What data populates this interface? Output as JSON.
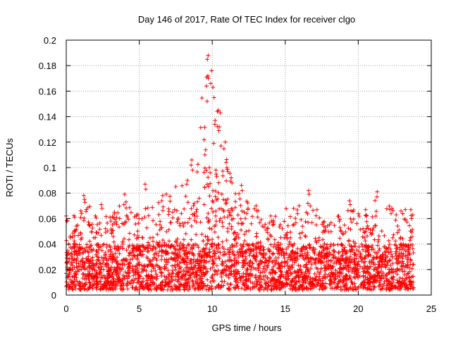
{
  "chart_data": {
    "type": "scatter",
    "title": "Day 146 of 2017, Rate Of TEC Index for receiver clgo",
    "xlabel": "GPS time / hours",
    "ylabel": "ROTI / TECUs",
    "xlim": [
      0,
      25
    ],
    "ylim": [
      0,
      0.2
    ],
    "x_ticks": [
      0,
      5,
      10,
      15,
      20,
      25
    ],
    "x_tick_labels": [
      "0",
      "5",
      "10",
      "15",
      "20",
      "25"
    ],
    "y_ticks": [
      0,
      0.02,
      0.04,
      0.06,
      0.08,
      0.1,
      0.12,
      0.14,
      0.16,
      0.18,
      0.2
    ],
    "y_tick_labels": [
      "0",
      "0.02",
      "0.04",
      "0.06",
      "0.08",
      "0.1",
      "0.12",
      "0.14",
      "0.16",
      "0.18",
      "0.2"
    ],
    "grid": true,
    "marker": "+",
    "colors": {
      "series": "#ff0000",
      "grid": "#a0a0a0",
      "axis": "#000000"
    },
    "series": [
      {
        "name": "ROTI",
        "x_range": [
          0,
          23.8
        ],
        "typical_range": [
          0.004,
          0.04
        ],
        "envelope": [
          {
            "x": 0.0,
            "y": 0.062
          },
          {
            "x": 1.0,
            "y": 0.066
          },
          {
            "x": 1.2,
            "y": 0.078
          },
          {
            "x": 2.0,
            "y": 0.062
          },
          {
            "x": 2.4,
            "y": 0.071
          },
          {
            "x": 3.0,
            "y": 0.061
          },
          {
            "x": 4.0,
            "y": 0.079
          },
          {
            "x": 5.4,
            "y": 0.087
          },
          {
            "x": 6.6,
            "y": 0.078
          },
          {
            "x": 8.3,
            "y": 0.09
          },
          {
            "x": 8.6,
            "y": 0.106
          },
          {
            "x": 9.7,
            "y": 0.188
          },
          {
            "x": 9.95,
            "y": 0.176
          },
          {
            "x": 10.4,
            "y": 0.145
          },
          {
            "x": 10.9,
            "y": 0.12
          },
          {
            "x": 11.3,
            "y": 0.092
          },
          {
            "x": 12.0,
            "y": 0.086
          },
          {
            "x": 13.0,
            "y": 0.07
          },
          {
            "x": 14.0,
            "y": 0.062
          },
          {
            "x": 16.6,
            "y": 0.082
          },
          {
            "x": 17.6,
            "y": 0.057
          },
          {
            "x": 19.4,
            "y": 0.074
          },
          {
            "x": 20.5,
            "y": 0.067
          },
          {
            "x": 21.3,
            "y": 0.081
          },
          {
            "x": 22.3,
            "y": 0.068
          },
          {
            "x": 23.6,
            "y": 0.067
          }
        ],
        "points": [
          [
            9.72,
            0.188
          ],
          [
            9.66,
            0.185
          ],
          [
            9.7,
            0.172
          ],
          [
            9.62,
            0.171
          ],
          [
            9.74,
            0.17
          ],
          [
            9.95,
            0.176
          ],
          [
            9.9,
            0.166
          ],
          [
            10.05,
            0.163
          ],
          [
            9.6,
            0.164
          ],
          [
            9.65,
            0.152
          ],
          [
            10.12,
            0.155
          ],
          [
            10.42,
            0.145
          ],
          [
            10.35,
            0.144
          ],
          [
            10.55,
            0.143
          ],
          [
            10.2,
            0.137
          ],
          [
            10.18,
            0.134
          ],
          [
            10.48,
            0.132
          ],
          [
            10.45,
            0.129
          ],
          [
            10.1,
            0.119
          ],
          [
            10.6,
            0.117
          ],
          [
            8.6,
            0.106
          ],
          [
            8.55,
            0.102
          ],
          [
            8.65,
            0.098
          ],
          [
            9.5,
            0.11
          ],
          [
            9.55,
            0.114
          ],
          [
            8.3,
            0.09
          ],
          [
            8.25,
            0.087
          ],
          [
            5.4,
            0.087
          ],
          [
            5.45,
            0.083
          ],
          [
            7.5,
            0.085
          ],
          [
            12.0,
            0.086
          ],
          [
            12.05,
            0.082
          ],
          [
            16.6,
            0.082
          ],
          [
            16.63,
            0.079
          ],
          [
            16.55,
            0.072
          ],
          [
            21.3,
            0.081
          ],
          [
            21.28,
            0.077
          ],
          [
            19.4,
            0.074
          ],
          [
            19.45,
            0.071
          ],
          [
            19.5,
            0.066
          ],
          [
            4.0,
            0.079
          ],
          [
            1.2,
            0.078
          ],
          [
            1.25,
            0.075
          ],
          [
            6.6,
            0.078
          ],
          [
            6.55,
            0.074
          ],
          [
            2.4,
            0.071
          ],
          [
            2.45,
            0.068
          ],
          [
            2.0,
            0.062
          ],
          [
            3.0,
            0.061
          ],
          [
            3.05,
            0.058
          ],
          [
            0.0,
            0.062
          ],
          [
            0.05,
            0.058
          ],
          [
            1.0,
            0.066
          ],
          [
            1.05,
            0.064
          ],
          [
            13.0,
            0.07
          ],
          [
            13.05,
            0.066
          ],
          [
            14.0,
            0.062
          ],
          [
            14.05,
            0.058
          ],
          [
            17.6,
            0.057
          ],
          [
            17.65,
            0.054
          ],
          [
            18.7,
            0.058
          ],
          [
            18.75,
            0.053
          ],
          [
            20.5,
            0.067
          ],
          [
            20.55,
            0.062
          ],
          [
            22.3,
            0.068
          ],
          [
            22.25,
            0.064
          ],
          [
            22.6,
            0.063
          ],
          [
            23.6,
            0.067
          ],
          [
            23.65,
            0.06
          ],
          [
            11.3,
            0.092
          ],
          [
            11.35,
            0.088
          ],
          [
            10.9,
            0.12
          ],
          [
            10.95,
            0.104
          ],
          [
            11.0,
            0.1
          ],
          [
            9.8,
            0.1
          ],
          [
            9.85,
            0.096
          ],
          [
            10.25,
            0.098
          ],
          [
            10.3,
            0.093
          ]
        ]
      }
    ]
  }
}
